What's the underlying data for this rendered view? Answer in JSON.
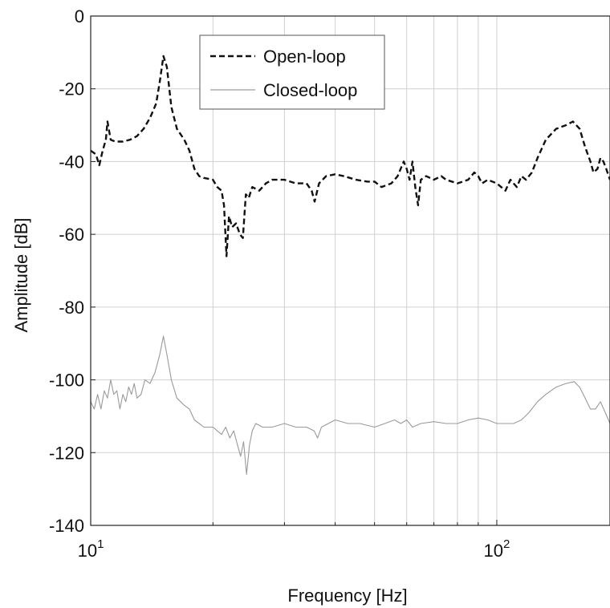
{
  "chart_data": {
    "type": "line",
    "xlabel": "Frequency [Hz]",
    "ylabel": "Amplitude [dB]",
    "xscale": "log",
    "xlim": [
      10,
      190
    ],
    "ylim": [
      -140,
      0
    ],
    "grid": true,
    "legend_position": "top-center",
    "y_ticks": [
      {
        "value": 0,
        "label": "0"
      },
      {
        "value": -20,
        "label": "-20"
      },
      {
        "value": -40,
        "label": "-40"
      },
      {
        "value": -60,
        "label": "-60"
      },
      {
        "value": -80,
        "label": "-80"
      },
      {
        "value": -100,
        "label": "-100"
      },
      {
        "value": -120,
        "label": "-120"
      },
      {
        "value": -140,
        "label": "-140"
      }
    ],
    "x_ticks": [
      {
        "value": 10,
        "base": "10",
        "exp": "1"
      },
      {
        "value": 100,
        "base": "10",
        "exp": "2"
      }
    ],
    "x_minor_grid": [
      20,
      30,
      40,
      50,
      60,
      70,
      80,
      90
    ],
    "series": [
      {
        "name": "Open-loop",
        "color": "#111111",
        "dash": "dashed",
        "points": [
          [
            10,
            -37
          ],
          [
            10.3,
            -38
          ],
          [
            10.5,
            -41
          ],
          [
            10.7,
            -37
          ],
          [
            10.9,
            -34
          ],
          [
            11.0,
            -29
          ],
          [
            11.2,
            -34
          ],
          [
            11.5,
            -34.5
          ],
          [
            12,
            -34.5
          ],
          [
            12.5,
            -34
          ],
          [
            13,
            -33
          ],
          [
            13.5,
            -31
          ],
          [
            14,
            -28
          ],
          [
            14.5,
            -24
          ],
          [
            14.8,
            -18
          ],
          [
            15.1,
            -11
          ],
          [
            15.4,
            -14
          ],
          [
            15.8,
            -25
          ],
          [
            16.3,
            -31
          ],
          [
            17,
            -34
          ],
          [
            17.5,
            -37
          ],
          [
            18,
            -42
          ],
          [
            18.5,
            -44
          ],
          [
            19,
            -44.5
          ],
          [
            20,
            -45
          ],
          [
            20.5,
            -47
          ],
          [
            21,
            -48
          ],
          [
            21.3,
            -52
          ],
          [
            21.6,
            -66
          ],
          [
            21.9,
            -55
          ],
          [
            22.3,
            -58
          ],
          [
            22.8,
            -57
          ],
          [
            23.3,
            -60
          ],
          [
            23.7,
            -61
          ],
          [
            24.1,
            -49
          ],
          [
            24.5,
            -50
          ],
          [
            25,
            -47
          ],
          [
            26,
            -48
          ],
          [
            27,
            -46
          ],
          [
            28,
            -45
          ],
          [
            30,
            -45
          ],
          [
            32,
            -46
          ],
          [
            34,
            -46
          ],
          [
            35,
            -48
          ],
          [
            35.6,
            -51
          ],
          [
            36.5,
            -46
          ],
          [
            38,
            -44
          ],
          [
            40,
            -43.5
          ],
          [
            42,
            -44
          ],
          [
            45,
            -45
          ],
          [
            48,
            -45.5
          ],
          [
            50,
            -45.5
          ],
          [
            52,
            -47
          ],
          [
            55,
            -46
          ],
          [
            57,
            -44
          ],
          [
            59,
            -40
          ],
          [
            60,
            -42
          ],
          [
            61,
            -45
          ],
          [
            62,
            -40
          ],
          [
            63,
            -47
          ],
          [
            64,
            -52
          ],
          [
            65,
            -45
          ],
          [
            67,
            -44
          ],
          [
            70,
            -45
          ],
          [
            73,
            -44
          ],
          [
            75,
            -45
          ],
          [
            80,
            -46
          ],
          [
            85,
            -45
          ],
          [
            88,
            -43
          ],
          [
            90,
            -44
          ],
          [
            92,
            -46
          ],
          [
            95,
            -45
          ],
          [
            100,
            -46
          ],
          [
            105,
            -48
          ],
          [
            108,
            -45
          ],
          [
            112,
            -47
          ],
          [
            115,
            -44
          ],
          [
            118,
            -45
          ],
          [
            122,
            -43
          ],
          [
            126,
            -39
          ],
          [
            132,
            -34
          ],
          [
            140,
            -31
          ],
          [
            148,
            -30
          ],
          [
            154,
            -29
          ],
          [
            160,
            -31
          ],
          [
            165,
            -36
          ],
          [
            170,
            -40
          ],
          [
            173,
            -43
          ],
          [
            177,
            -42
          ],
          [
            180,
            -39
          ],
          [
            183,
            -40
          ],
          [
            186,
            -42
          ],
          [
            190,
            -45
          ]
        ]
      },
      {
        "name": "Closed-loop",
        "color": "#9a9a9a",
        "dash": "solid",
        "points": [
          [
            10,
            -106
          ],
          [
            10.2,
            -108
          ],
          [
            10.4,
            -104
          ],
          [
            10.6,
            -108
          ],
          [
            10.8,
            -103
          ],
          [
            11.0,
            -105
          ],
          [
            11.2,
            -100
          ],
          [
            11.4,
            -104
          ],
          [
            11.6,
            -103
          ],
          [
            11.8,
            -108
          ],
          [
            12.0,
            -104
          ],
          [
            12.2,
            -106
          ],
          [
            12.4,
            -102
          ],
          [
            12.6,
            -104
          ],
          [
            12.8,
            -101
          ],
          [
            13.0,
            -105
          ],
          [
            13.3,
            -104
          ],
          [
            13.6,
            -100
          ],
          [
            14.0,
            -101
          ],
          [
            14.4,
            -98
          ],
          [
            14.8,
            -93
          ],
          [
            15.1,
            -88
          ],
          [
            15.4,
            -93
          ],
          [
            15.8,
            -100
          ],
          [
            16.3,
            -105
          ],
          [
            17,
            -107
          ],
          [
            17.5,
            -108
          ],
          [
            18,
            -111
          ],
          [
            18.5,
            -112
          ],
          [
            19,
            -113
          ],
          [
            20,
            -113
          ],
          [
            20.5,
            -114
          ],
          [
            21,
            -115
          ],
          [
            21.5,
            -113
          ],
          [
            22,
            -116
          ],
          [
            22.5,
            -114
          ],
          [
            23,
            -118
          ],
          [
            23.4,
            -121
          ],
          [
            23.8,
            -117
          ],
          [
            24.2,
            -126
          ],
          [
            24.6,
            -118
          ],
          [
            25,
            -114
          ],
          [
            25.5,
            -112
          ],
          [
            26.5,
            -113
          ],
          [
            28,
            -113
          ],
          [
            30,
            -112
          ],
          [
            32,
            -113
          ],
          [
            34,
            -113
          ],
          [
            35.5,
            -114
          ],
          [
            36.2,
            -116
          ],
          [
            37,
            -113
          ],
          [
            40,
            -111
          ],
          [
            43,
            -112
          ],
          [
            46,
            -112
          ],
          [
            50,
            -113
          ],
          [
            53,
            -112
          ],
          [
            56,
            -111
          ],
          [
            58,
            -112
          ],
          [
            60,
            -111
          ],
          [
            62,
            -113
          ],
          [
            65,
            -112
          ],
          [
            70,
            -111.5
          ],
          [
            75,
            -112
          ],
          [
            80,
            -112
          ],
          [
            85,
            -111
          ],
          [
            90,
            -110.5
          ],
          [
            95,
            -111
          ],
          [
            100,
            -112
          ],
          [
            105,
            -112
          ],
          [
            110,
            -112
          ],
          [
            115,
            -111
          ],
          [
            120,
            -109
          ],
          [
            126,
            -106
          ],
          [
            132,
            -104
          ],
          [
            140,
            -102
          ],
          [
            148,
            -101
          ],
          [
            155,
            -100.5
          ],
          [
            160,
            -102
          ],
          [
            165,
            -105
          ],
          [
            170,
            -108
          ],
          [
            175,
            -108
          ],
          [
            180,
            -106
          ],
          [
            185,
            -109
          ],
          [
            190,
            -112
          ]
        ]
      }
    ]
  }
}
